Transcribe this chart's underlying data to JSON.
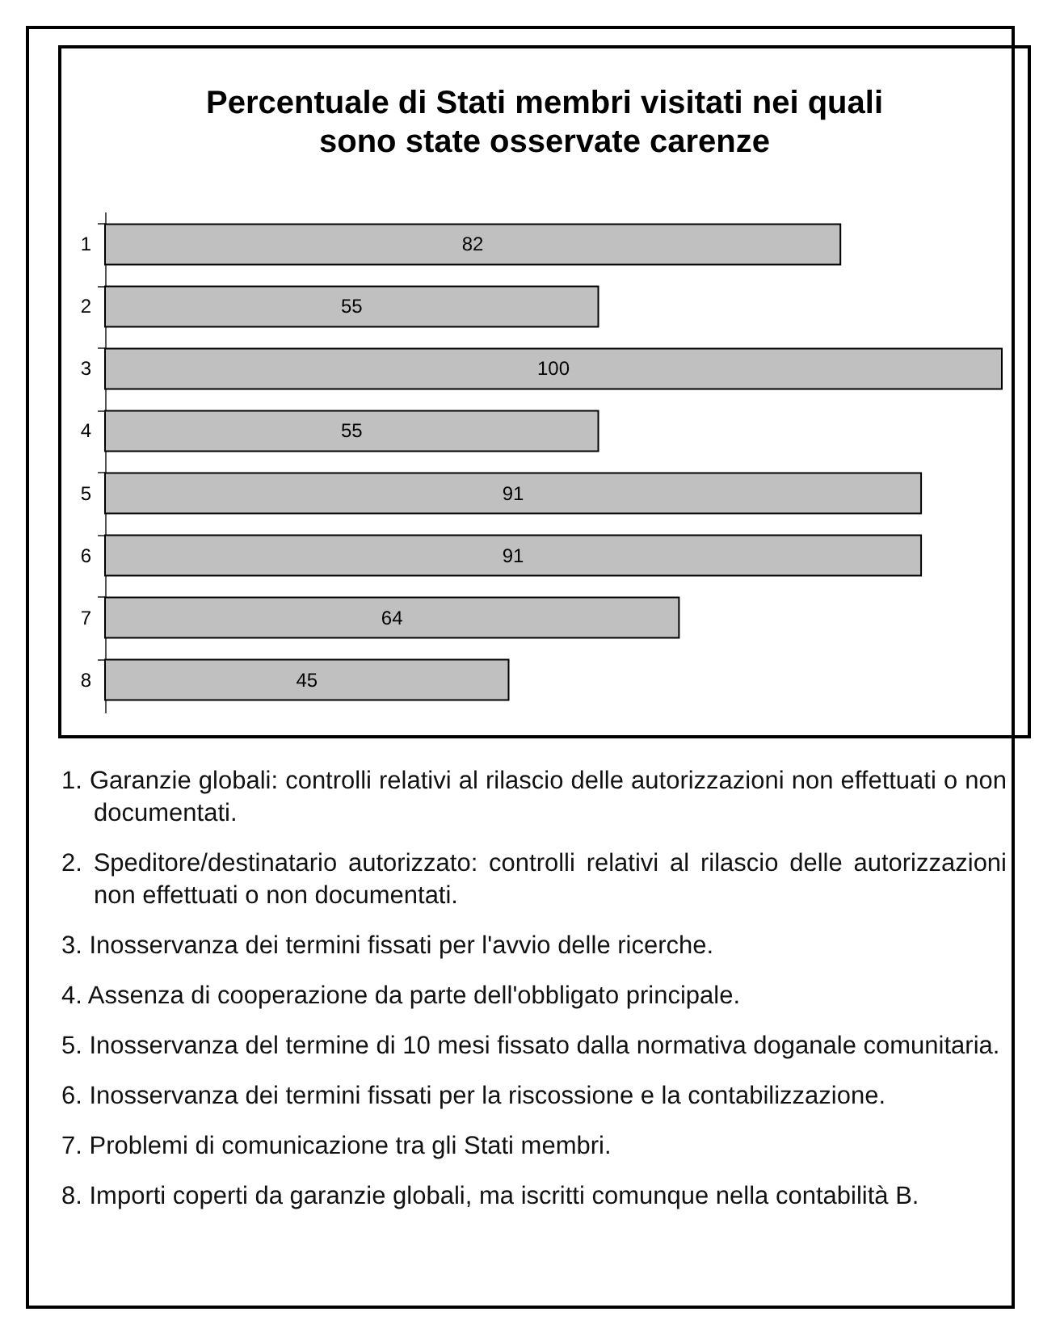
{
  "chart_data": {
    "type": "bar",
    "orientation": "horizontal",
    "title": "Percentuale di Stati membri visitati nei quali sono state osservate carenze",
    "categories": [
      "1",
      "2",
      "3",
      "4",
      "5",
      "6",
      "7",
      "8"
    ],
    "values": [
      82,
      55,
      100,
      55,
      91,
      91,
      64,
      45
    ],
    "color": "#c0c0c0",
    "data_labels": true,
    "annotations": [
      "1. Garanzie globali: controlli relativi al rilascio delle autorizzazioni non effettuati o non documentati.",
      "2. Speditore/destinatario autorizzato: controlli relativi al rilascio delle autorizzazioni non effettuati o non documentati.",
      "3. Inosservanza dei termini fissati per l'avvio delle ricerche.",
      "4. Assenza di cooperazione da parte dell'obbligato principale.",
      "5. Inosservanza del termine di 10 mesi fissato dalla normativa doganale comunitaria.",
      "6. Inosservanza dei termini fissati per la riscossione e la contabilizzazione.",
      "7. Problemi di comunicazione tra gli Stati membri.",
      "8. Importi coperti da garanzie globali, ma iscritti comunque nella contabilità B."
    ]
  }
}
